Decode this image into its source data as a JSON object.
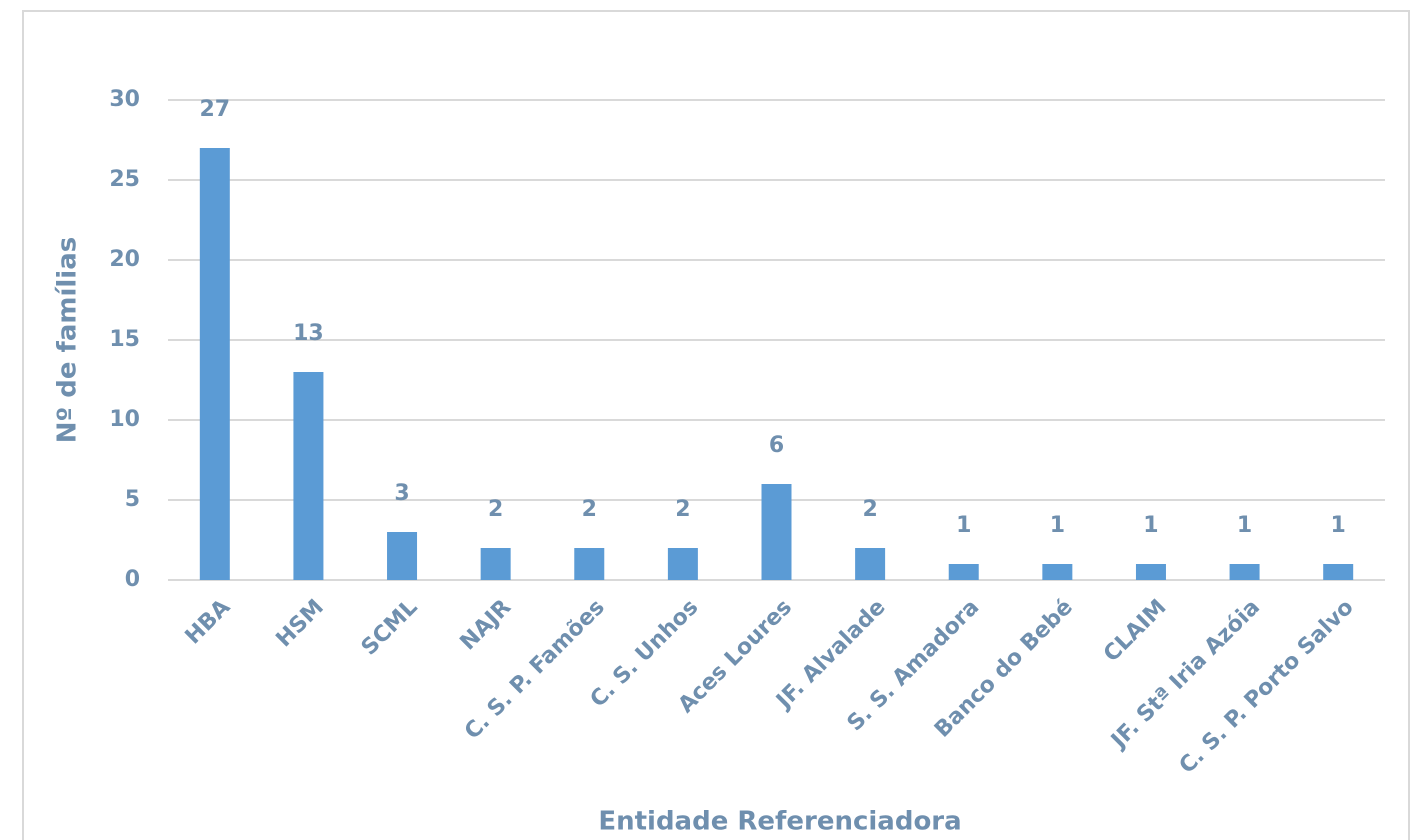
{
  "chart_data": {
    "type": "bar",
    "x_label": "Entidade Referenciadora",
    "y_label": "Nº de famílias",
    "categories": [
      "HBA",
      "HSM",
      "SCML",
      "NAJR",
      "C. S. P. Famões",
      "C. S. Unhos",
      "Aces Loures",
      "JF. Alvalade",
      "S. S. Amadora",
      "Banco do Bebé",
      "CLAIM",
      "JF. Stª Iria Azóia",
      "C. S. P. Porto Salvo"
    ],
    "values": [
      27,
      13,
      3,
      2,
      2,
      2,
      6,
      2,
      1,
      1,
      1,
      1,
      1
    ],
    "color": "#5b9bd5",
    "ylim": [
      0,
      30
    ],
    "yticks": [
      0,
      5,
      10,
      15,
      20,
      25,
      30
    ],
    "grid": true
  }
}
